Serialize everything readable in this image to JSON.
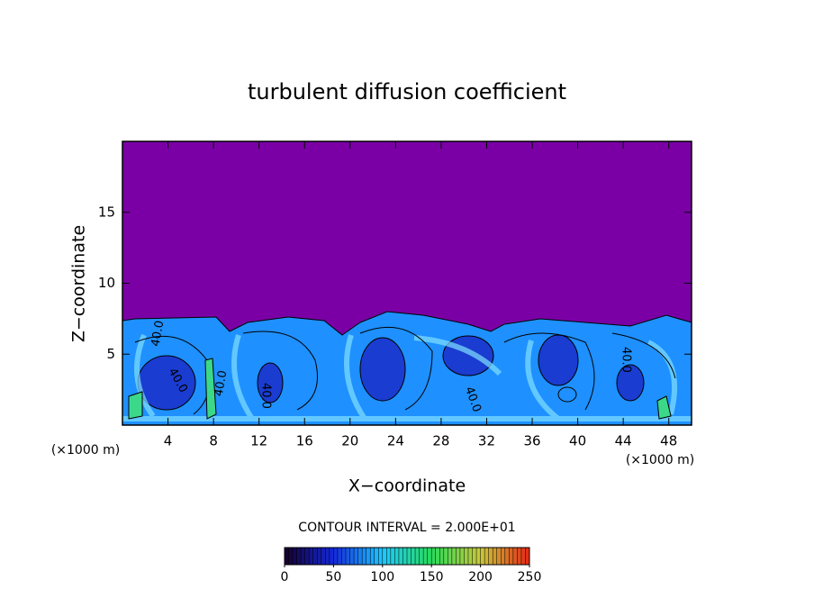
{
  "chart_data": {
    "type": "contour",
    "title": "turbulent diffusion coefficient",
    "x_label": "X−coordinate",
    "y_label": "Z−coordinate",
    "x_unit_label": "(×1000 m)",
    "xlim": [
      0,
      50
    ],
    "xticks": [
      4,
      8,
      12,
      16,
      20,
      24,
      28,
      32,
      36,
      40,
      44,
      48
    ],
    "ylim": [
      0,
      20
    ],
    "yticks": [
      5,
      10,
      15
    ],
    "contour_interval_label": "CONTOUR INTERVAL = 2.000E+01",
    "contour_labels": [
      "40.0",
      "40.0",
      "40.0",
      "40.0",
      "40.0",
      "40.0"
    ],
    "colorbar": {
      "range": [
        0,
        250
      ],
      "ticks": [
        0,
        50,
        100,
        150,
        200,
        250
      ]
    }
  }
}
